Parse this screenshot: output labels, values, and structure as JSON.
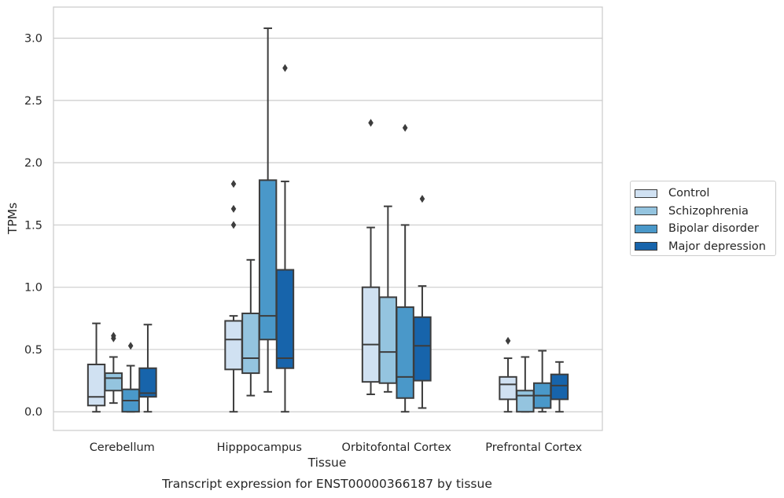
{
  "chart_data": {
    "type": "box",
    "title": "",
    "xlabel": "Tissue",
    "ylabel": "TPMs",
    "caption": "Transcript expression for ENST00000366187 by tissue",
    "ylim": [
      -0.15,
      3.25
    ],
    "yticks": [
      0.0,
      0.5,
      1.0,
      1.5,
      2.0,
      2.5,
      3.0
    ],
    "ytick_labels": [
      "0.0",
      "0.5",
      "1.0",
      "1.5",
      "2.0",
      "2.5",
      "3.0"
    ],
    "grid": "horizontal",
    "legend_position": "right",
    "categories": [
      "Cerebellum",
      "Hipppocampus",
      "Orbitofontal Cortex",
      "Prefrontal Cortex"
    ],
    "series": [
      {
        "name": "Control",
        "color": "#d0e1f2",
        "boxes": [
          {
            "whisker_low": 0.0,
            "q1": 0.05,
            "median": 0.12,
            "q3": 0.38,
            "whisker_high": 0.71,
            "outliers": []
          },
          {
            "whisker_low": 0.0,
            "q1": 0.34,
            "median": 0.58,
            "q3": 0.73,
            "whisker_high": 0.77,
            "outliers": [
              1.5,
              1.63,
              1.83
            ]
          },
          {
            "whisker_low": 0.14,
            "q1": 0.24,
            "median": 0.54,
            "q3": 1.0,
            "whisker_high": 1.48,
            "outliers": [
              2.32
            ]
          },
          {
            "whisker_low": 0.0,
            "q1": 0.1,
            "median": 0.22,
            "q3": 0.28,
            "whisker_high": 0.43,
            "outliers": [
              0.57
            ]
          }
        ]
      },
      {
        "name": "Schizophrenia",
        "color": "#94c4df",
        "boxes": [
          {
            "whisker_low": 0.07,
            "q1": 0.17,
            "median": 0.27,
            "q3": 0.31,
            "whisker_high": 0.44,
            "outliers": [
              0.59,
              0.61
            ]
          },
          {
            "whisker_low": 0.13,
            "q1": 0.31,
            "median": 0.43,
            "q3": 0.79,
            "whisker_high": 1.22,
            "outliers": []
          },
          {
            "whisker_low": 0.16,
            "q1": 0.23,
            "median": 0.48,
            "q3": 0.92,
            "whisker_high": 1.65,
            "outliers": []
          },
          {
            "whisker_low": 0.0,
            "q1": 0.0,
            "median": 0.13,
            "q3": 0.17,
            "whisker_high": 0.44,
            "outliers": []
          }
        ]
      },
      {
        "name": "Bipolar disorder",
        "color": "#4a98c9",
        "boxes": [
          {
            "whisker_low": 0.0,
            "q1": 0.0,
            "median": 0.09,
            "q3": 0.18,
            "whisker_high": 0.37,
            "outliers": [
              0.53
            ]
          },
          {
            "whisker_low": 0.16,
            "q1": 0.58,
            "median": 0.77,
            "q3": 1.86,
            "whisker_high": 3.08,
            "outliers": []
          },
          {
            "whisker_low": 0.0,
            "q1": 0.11,
            "median": 0.28,
            "q3": 0.84,
            "whisker_high": 1.5,
            "outliers": [
              2.28
            ]
          },
          {
            "whisker_low": 0.0,
            "q1": 0.03,
            "median": 0.13,
            "q3": 0.23,
            "whisker_high": 0.49,
            "outliers": []
          }
        ]
      },
      {
        "name": "Major depression",
        "color": "#1764ab",
        "boxes": [
          {
            "whisker_low": 0.0,
            "q1": 0.12,
            "median": 0.15,
            "q3": 0.35,
            "whisker_high": 0.7,
            "outliers": []
          },
          {
            "whisker_low": 0.0,
            "q1": 0.35,
            "median": 0.43,
            "q3": 1.14,
            "whisker_high": 1.85,
            "outliers": [
              2.76
            ]
          },
          {
            "whisker_low": 0.03,
            "q1": 0.25,
            "median": 0.53,
            "q3": 0.76,
            "whisker_high": 1.01,
            "outliers": [
              1.71
            ]
          },
          {
            "whisker_low": 0.0,
            "q1": 0.1,
            "median": 0.21,
            "q3": 0.3,
            "whisker_high": 0.4,
            "outliers": []
          }
        ]
      }
    ]
  }
}
